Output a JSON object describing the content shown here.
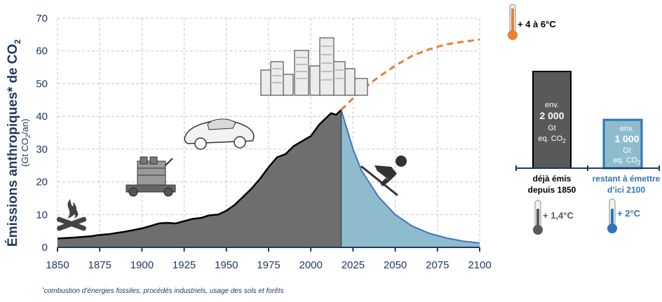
{
  "chart_data": {
    "type": "area",
    "ylabel": "Émissions anthropiques* de CO",
    "ylabel_sub": "2",
    "yunit_prefix": "(Gt CO",
    "yunit_sub": "2",
    "yunit_suffix": "/an)",
    "ylim": [
      0,
      70
    ],
    "xlim": [
      1850,
      2100
    ],
    "yticks": [
      "0",
      "10",
      "20",
      "30",
      "40",
      "50",
      "60",
      "70"
    ],
    "xticks": [
      "1850",
      "1875",
      "1900",
      "1925",
      "1950",
      "1975",
      "2000",
      "2025",
      "2050",
      "2075",
      "2100"
    ],
    "grid": true,
    "series": [
      {
        "role": "historical",
        "color": "#6e6e6e",
        "points": [
          [
            1850,
            2.7
          ],
          [
            1860,
            3.0
          ],
          [
            1870,
            3.4
          ],
          [
            1875,
            3.8
          ],
          [
            1880,
            4.0
          ],
          [
            1890,
            4.8
          ],
          [
            1900,
            5.8
          ],
          [
            1905,
            6.5
          ],
          [
            1910,
            7.3
          ],
          [
            1915,
            7.5
          ],
          [
            1920,
            7.3
          ],
          [
            1925,
            8.0
          ],
          [
            1930,
            8.7
          ],
          [
            1935,
            9.0
          ],
          [
            1940,
            9.8
          ],
          [
            1945,
            10.0
          ],
          [
            1950,
            11.2
          ],
          [
            1955,
            13.0
          ],
          [
            1960,
            15.5
          ],
          [
            1965,
            18.0
          ],
          [
            1970,
            21.0
          ],
          [
            1975,
            24.5
          ],
          [
            1980,
            27.5
          ],
          [
            1985,
            28.5
          ],
          [
            1990,
            31.0
          ],
          [
            1995,
            32.5
          ],
          [
            2000,
            34.0
          ],
          [
            2005,
            37.5
          ],
          [
            2010,
            40.0
          ],
          [
            2012,
            41.0
          ],
          [
            2015,
            40.5
          ],
          [
            2018,
            42.0
          ]
        ]
      },
      {
        "role": "decline",
        "color": "#8fbccc",
        "points": [
          [
            2018,
            42.0
          ],
          [
            2025,
            30.0
          ],
          [
            2030,
            23.5
          ],
          [
            2040,
            15.5
          ],
          [
            2050,
            10.0
          ],
          [
            2060,
            6.5
          ],
          [
            2070,
            4.3
          ],
          [
            2080,
            2.9
          ],
          [
            2090,
            1.9
          ],
          [
            2100,
            1.3
          ]
        ]
      },
      {
        "role": "projection",
        "color": "#ed7d31",
        "points": [
          [
            2018,
            42.0
          ],
          [
            2025,
            45.5
          ],
          [
            2030,
            48.0
          ],
          [
            2040,
            52.0
          ],
          [
            2050,
            55.5
          ],
          [
            2060,
            58.5
          ],
          [
            2070,
            60.5
          ],
          [
            2080,
            62.0
          ],
          [
            2090,
            62.8
          ],
          [
            2100,
            63.5
          ]
        ]
      }
    ]
  },
  "scenario_high": {
    "label": "+ 4 à 6°C",
    "color": "#ed7d31"
  },
  "budget": {
    "spent": {
      "line1": "env.",
      "amount": "2 000",
      "unit": "Gt",
      "unit2_prefix": "eq. CO",
      "unit2_sub": "2",
      "caption1": "déjà émis",
      "caption2": "depuis 1850",
      "temp": "+ 1,4°C",
      "color": "#595959",
      "value": 2000
    },
    "remaining": {
      "line1": "env.",
      "amount": "1 000",
      "unit": "Gt",
      "unit2_prefix": "eq. CO",
      "unit2_sub": "2",
      "caption1": "restant à émettre",
      "caption2": "d’ici 2100",
      "temp": "+ 2°C",
      "color": "#8fbccc",
      "value": 1000
    }
  },
  "footnote_mark": "*",
  "footnote": "combustion d’énergies fossiles, procédés industriels, usage des sols et forêts",
  "icons": [
    "campfire-icon",
    "engine-icon",
    "car-icon",
    "city-skyline-icon",
    "skier-icon",
    "thermometer-icon"
  ]
}
